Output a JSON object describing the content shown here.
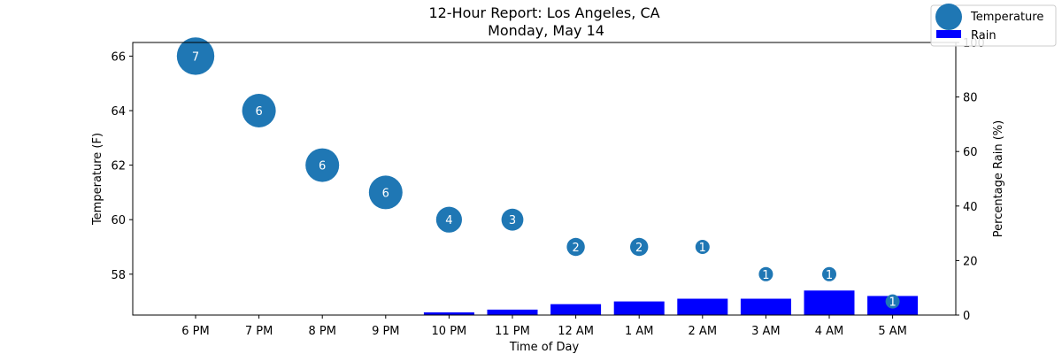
{
  "chart_data": {
    "type": "scatter+bar",
    "title": "12-Hour Report: Los Angeles, CA",
    "subtitle": "Monday, May 14",
    "xlabel": "Time of Day",
    "ylabel_left": "Temperature (F)",
    "ylabel_right": "Percentage Rain (%)",
    "categories": [
      "6 PM",
      "7 PM",
      "8 PM",
      "9 PM",
      "10 PM",
      "11 PM",
      "12 AM",
      "1 AM",
      "2 AM",
      "3 AM",
      "4 AM",
      "5 AM"
    ],
    "temperature": [
      66,
      64,
      62,
      61,
      60,
      60,
      59,
      59,
      59,
      58,
      58,
      57
    ],
    "bubble_labels": [
      7,
      6,
      6,
      6,
      4,
      3,
      2,
      2,
      1,
      1,
      1,
      1
    ],
    "rain": [
      0,
      0,
      0,
      0,
      1,
      2,
      4,
      5,
      6,
      6,
      9,
      7
    ],
    "ylim_left": [
      56.5,
      66.5
    ],
    "yticks_left": [
      58,
      60,
      62,
      64,
      66
    ],
    "ylim_right": [
      0,
      100
    ],
    "yticks_right": [
      0,
      20,
      40,
      60,
      80,
      100
    ],
    "legend": {
      "placement": "top-right",
      "entries": [
        "Temperature",
        "Rain"
      ]
    },
    "grid": false,
    "colors": {
      "temperature": "#1f77b4",
      "rain": "#0000ff"
    }
  }
}
